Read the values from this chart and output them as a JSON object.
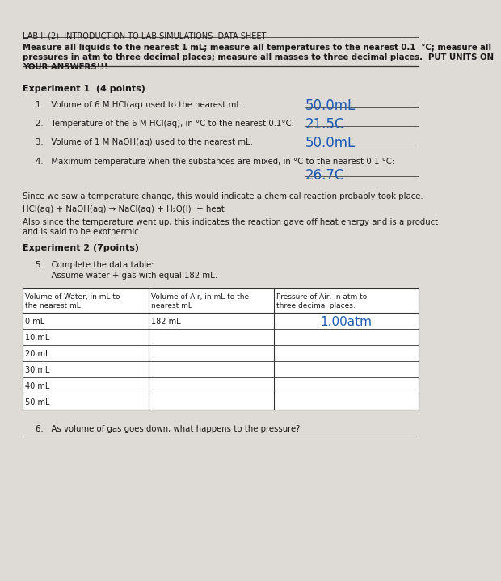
{
  "title": "LAB II (2)  INTRODUCTION TO LAB SIMULATIONS  DATA SHEET",
  "instr_line1": "Measure all liquids to the nearest 1 mL; measure all temperatures to the nearest 0.1  °C; measure all",
  "instr_line2": "pressures in atm to three decimal places; measure all masses to three decimal places.  PUT UNITS ON",
  "instr_line3": "YOUR ANSWERS!!!",
  "exp1_header": "Experiment 1  (4 points)",
  "q1": "1.   Volume of 6 M HCl(aq) used to the nearest mL:",
  "q2": "2.   Temperature of the 6 M HCl(aq), in °C to the nearest 0.1°C:",
  "q3": "3.   Volume of 1 M NaOH(aq) used to the nearest mL:",
  "q4": "4.   Maximum temperature when the substances are mixed, in °C to the nearest 0.1 °C:",
  "a1": "50.0mL",
  "a2": "21.5C",
  "a3": "50.0mL",
  "a4": "26.7C",
  "answer_color": "#1b5bb5",
  "para1": "Since we saw a temperature change, this would indicate a chemical reaction probably took place.",
  "eq": "HCl(aq) + NaOH(aq) → NaCl(aq) + H₂O(l)  + heat",
  "para2a": "Also since the temperature went up, this indicates the reaction gave off heat energy and is a product",
  "para2b": "and is said to be exothermic.",
  "exp2_header": "Experiment 2 (7points)",
  "q5a": "5.   Complete the data table:",
  "q5b": "      Assume water + gas with equal 182 mL.",
  "th1": "Volume of Water, in mL to\nthe nearest mL",
  "th2": "Volume of Air, in mL to the\nnearest mL",
  "th3": "Pressure of Air, in atm to\nthree decimal places.",
  "table_col1": [
    "0 mL",
    "10 mL",
    "20 mL",
    "30 mL",
    "40 mL",
    "50 mL"
  ],
  "table_col2": [
    "182 mL",
    "",
    "",
    "",
    "",
    ""
  ],
  "table_col3_answer": "1.00atm",
  "q6": "6.   As volume of gas goes down, what happens to the pressure?",
  "bg_color": "#dedad5",
  "text_color": "#1a1a1a",
  "bold_color": "#111111"
}
